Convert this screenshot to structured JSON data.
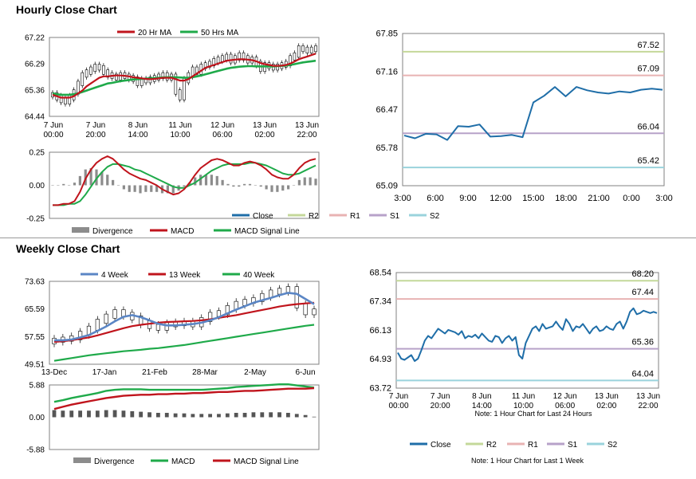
{
  "sections": {
    "hourly_title": "Hourly Close Chart",
    "weekly_title": "Weekly Close Chart"
  },
  "colors": {
    "red": "#c0141c",
    "green": "#1faa4a",
    "blue_ma": "#5b86c5",
    "close": "#1f6ea8",
    "r2": "#c4d89a",
    "r1": "#e8b3b3",
    "s1": "#b7a2c9",
    "s2": "#9ad3dc",
    "divergence": "#8c8c8c"
  },
  "chart_data": [
    {
      "id": "hourly_price",
      "type": "line",
      "legend": [
        "20 Hr MA",
        "50 Hrs MA"
      ],
      "ylim": [
        64.44,
        67.22
      ],
      "yticks": [
        "67.22",
        "66.29",
        "65.36",
        "64.44"
      ],
      "xticks": [
        {
          "line1": "7 Jun",
          "line2": "00:00"
        },
        {
          "line1": "7 Jun",
          "line2": "20:00"
        },
        {
          "line1": "8 Jun",
          "line2": "14:00"
        },
        {
          "line1": "11 Jun",
          "line2": "10:00"
        },
        {
          "line1": "12 Jun",
          "line2": "06:00"
        },
        {
          "line1": "13 Jun",
          "line2": "02:00"
        },
        {
          "line1": "13 Jun",
          "line2": "22:00"
        }
      ],
      "close": [
        65.2,
        65.1,
        65.0,
        64.95,
        65.1,
        65.3,
        65.6,
        65.9,
        66.0,
        66.1,
        66.2,
        66.15,
        66.0,
        65.9,
        65.85,
        65.8,
        65.9,
        65.85,
        65.8,
        65.75,
        65.6,
        65.7,
        65.7,
        65.75,
        65.8,
        65.85,
        65.9,
        65.8,
        65.85,
        65.3,
        65.1,
        65.7,
        65.9,
        66.1,
        66.0,
        66.2,
        66.25,
        66.3,
        66.4,
        66.45,
        66.5,
        66.55,
        66.4,
        66.5,
        66.6,
        66.5,
        66.4,
        66.45,
        66.3,
        66.1,
        66.25,
        66.2,
        66.15,
        66.2,
        66.25,
        66.3,
        66.5,
        66.6,
        66.85,
        66.8,
        66.75,
        66.8,
        66.85
      ],
      "ma20": [
        65.2,
        65.15,
        65.1,
        65.1,
        65.1,
        65.15,
        65.25,
        65.35,
        65.5,
        65.6,
        65.7,
        65.8,
        65.85,
        65.85,
        65.87,
        65.88,
        65.88,
        65.87,
        65.85,
        65.82,
        65.8,
        65.78,
        65.76,
        65.75,
        65.76,
        65.78,
        65.8,
        65.8,
        65.8,
        65.75,
        65.7,
        65.7,
        65.75,
        65.85,
        65.95,
        66.05,
        66.15,
        66.2,
        66.25,
        66.3,
        66.35,
        66.4,
        66.42,
        66.44,
        66.45,
        66.45,
        66.44,
        66.42,
        66.38,
        66.32,
        66.28,
        66.25,
        66.22,
        66.22,
        66.23,
        66.25,
        66.3,
        66.37,
        66.45,
        66.5,
        66.55,
        66.6,
        66.65
      ],
      "ma50": [
        65.25,
        65.22,
        65.2,
        65.2,
        65.2,
        65.22,
        65.25,
        65.3,
        65.35,
        65.4,
        65.45,
        65.5,
        65.55,
        65.6,
        65.62,
        65.65,
        65.68,
        65.7,
        65.72,
        65.74,
        65.75,
        65.76,
        65.77,
        65.78,
        65.79,
        65.8,
        65.81,
        65.82,
        65.82,
        65.82,
        65.81,
        65.8,
        65.8,
        65.82,
        65.85,
        65.88,
        65.92,
        65.96,
        66.0,
        66.04,
        66.08,
        66.12,
        66.15,
        66.17,
        66.19,
        66.2,
        66.21,
        66.21,
        66.2,
        66.2,
        66.2,
        66.2,
        66.2,
        66.21,
        66.22,
        66.23,
        66.25,
        66.28,
        66.31,
        66.34,
        66.36,
        66.38,
        66.4
      ]
    },
    {
      "id": "hourly_macd",
      "type": "line",
      "legend": [
        "Divergence",
        "MACD",
        "MACD Signal Line"
      ],
      "ylim": [
        -0.25,
        0.25
      ],
      "yticks": [
        "0.25",
        "0.00",
        "-0.25"
      ],
      "macd": [
        -0.15,
        -0.15,
        -0.14,
        -0.14,
        -0.12,
        -0.05,
        0.05,
        0.12,
        0.17,
        0.2,
        0.22,
        0.2,
        0.16,
        0.12,
        0.09,
        0.07,
        0.05,
        0.04,
        0.02,
        0.0,
        -0.03,
        -0.05,
        -0.07,
        -0.06,
        -0.03,
        0.02,
        0.08,
        0.13,
        0.16,
        0.19,
        0.2,
        0.19,
        0.17,
        0.15,
        0.15,
        0.17,
        0.18,
        0.17,
        0.15,
        0.12,
        0.08,
        0.06,
        0.05,
        0.05,
        0.08,
        0.13,
        0.17,
        0.19,
        0.2
      ],
      "signal": [
        -0.15,
        -0.15,
        -0.15,
        -0.14,
        -0.14,
        -0.12,
        -0.07,
        -0.01,
        0.05,
        0.1,
        0.14,
        0.16,
        0.16,
        0.15,
        0.14,
        0.12,
        0.11,
        0.09,
        0.07,
        0.05,
        0.03,
        0.01,
        -0.01,
        -0.02,
        -0.02,
        0.0,
        0.02,
        0.05,
        0.08,
        0.11,
        0.13,
        0.15,
        0.16,
        0.16,
        0.16,
        0.16,
        0.17,
        0.17,
        0.16,
        0.15,
        0.13,
        0.11,
        0.09,
        0.08,
        0.08,
        0.09,
        0.11,
        0.13,
        0.15
      ],
      "divergence": [
        0.0,
        0.0,
        0.01,
        0.0,
        0.02,
        0.07,
        0.12,
        0.13,
        0.12,
        0.1,
        0.08,
        0.04,
        0.0,
        -0.03,
        -0.05,
        -0.05,
        -0.06,
        -0.05,
        -0.05,
        -0.05,
        -0.06,
        -0.06,
        -0.06,
        -0.04,
        -0.01,
        0.02,
        0.06,
        0.08,
        0.08,
        0.08,
        0.07,
        0.04,
        0.01,
        -0.01,
        -0.01,
        0.01,
        0.01,
        0.0,
        -0.01,
        -0.03,
        -0.05,
        -0.05,
        -0.04,
        -0.03,
        0.0,
        0.04,
        0.06,
        0.06,
        0.05
      ]
    },
    {
      "id": "hourly_24h",
      "type": "line",
      "legend": [
        "Close",
        "R2",
        "R1",
        "S1",
        "S2"
      ],
      "note": "Note: 1 Hour Chart for Last 24 Hours",
      "ylim": [
        65.09,
        67.85
      ],
      "yticks": [
        "67.85",
        "67.16",
        "66.47",
        "65.78",
        "65.09"
      ],
      "xticks": [
        "3:00",
        "6:00",
        "9:00",
        "12:00",
        "15:00",
        "18:00",
        "21:00",
        "0:00",
        "3:00"
      ],
      "levels": {
        "R2": 67.52,
        "R1": 67.09,
        "S1": 66.04,
        "S2": 65.42
      },
      "level_labels": {
        "R2": "67.52",
        "R1": "67.09",
        "S1": "66.04",
        "S2": "65.42"
      },
      "close": [
        66.0,
        65.95,
        66.03,
        66.02,
        65.92,
        66.17,
        66.16,
        66.2,
        65.98,
        65.99,
        66.01,
        65.97,
        66.6,
        66.72,
        66.88,
        66.71,
        66.88,
        66.82,
        66.78,
        66.76,
        66.8,
        66.78,
        66.83,
        66.85,
        66.83
      ]
    },
    {
      "id": "weekly_price",
      "type": "line",
      "legend": [
        "4 Week",
        "13 Week",
        "40 Week"
      ],
      "ylim": [
        49.51,
        73.63
      ],
      "yticks": [
        "73.63",
        "65.59",
        "57.55",
        "49.51"
      ],
      "xticks": [
        "13-Dec",
        "17-Jan",
        "21-Feb",
        "28-Mar",
        "2-May",
        "6-Jun"
      ],
      "close": [
        56.5,
        56.8,
        57.2,
        58.5,
        60.0,
        62.0,
        63.5,
        64.8,
        64.0,
        63.0,
        61.5,
        60.5,
        60.0,
        61.0,
        61.3,
        61.5,
        61.0,
        62.5,
        64.0,
        64.5,
        66.0,
        67.2,
        67.8,
        68.3,
        69.5,
        70.5,
        71.0,
        71.5,
        66.5,
        64.5,
        65.0
      ],
      "ma4": [
        56.5,
        56.5,
        56.7,
        57.3,
        58.0,
        59.2,
        60.5,
        62.0,
        63.3,
        63.8,
        63.2,
        62.3,
        61.3,
        60.8,
        60.8,
        61.0,
        61.2,
        61.6,
        62.3,
        63.2,
        64.3,
        65.4,
        66.4,
        67.4,
        68.1,
        68.8,
        69.6,
        70.3,
        70.0,
        68.5,
        67.0
      ],
      "ma13": [
        56.0,
        56.2,
        56.5,
        56.9,
        57.3,
        57.9,
        58.6,
        59.3,
        60.0,
        60.6,
        61.0,
        61.3,
        61.6,
        61.8,
        61.9,
        62.0,
        62.1,
        62.3,
        62.6,
        63.0,
        63.4,
        63.8,
        64.3,
        64.8,
        65.3,
        65.8,
        66.3,
        66.7,
        67.0,
        67.2,
        67.4
      ],
      "ma40": [
        50.5,
        50.9,
        51.3,
        51.7,
        52.1,
        52.4,
        52.7,
        53.0,
        53.3,
        53.5,
        53.7,
        54.0,
        54.2,
        54.5,
        54.8,
        55.1,
        55.5,
        55.9,
        56.3,
        56.7,
        57.1,
        57.5,
        57.9,
        58.3,
        58.7,
        59.1,
        59.5,
        59.9,
        60.3,
        60.7,
        61.0
      ]
    },
    {
      "id": "weekly_macd",
      "type": "line",
      "legend": [
        "Divergence",
        "MACD",
        "MACD Signal Line"
      ],
      "ylim": [
        -5.88,
        5.88
      ],
      "yticks": [
        "5.88",
        "0.00",
        "-5.88"
      ],
      "macd": [
        2.8,
        3.1,
        3.5,
        3.8,
        4.1,
        4.4,
        4.8,
        5.0,
        5.1,
        5.1,
        5.1,
        5.0,
        5.0,
        5.0,
        5.0,
        5.0,
        5.0,
        5.0,
        5.1,
        5.2,
        5.3,
        5.5,
        5.6,
        5.7,
        5.8,
        5.9,
        6.0,
        6.0,
        5.8,
        5.6,
        5.4
      ],
      "signal": [
        1.5,
        1.9,
        2.3,
        2.6,
        2.9,
        3.2,
        3.5,
        3.7,
        3.9,
        4.0,
        4.1,
        4.1,
        4.2,
        4.2,
        4.3,
        4.3,
        4.4,
        4.4,
        4.5,
        4.6,
        4.6,
        4.7,
        4.8,
        4.8,
        4.9,
        5.0,
        5.1,
        5.2,
        5.2,
        5.2,
        5.3
      ],
      "divergence": [
        1.3,
        1.2,
        1.2,
        1.2,
        1.2,
        1.2,
        1.3,
        1.3,
        1.2,
        1.1,
        1.0,
        0.9,
        0.8,
        0.8,
        0.7,
        0.7,
        0.6,
        0.6,
        0.6,
        0.6,
        0.7,
        0.8,
        0.8,
        0.9,
        0.9,
        0.9,
        0.9,
        0.8,
        0.6,
        0.4,
        0.1
      ]
    },
    {
      "id": "weekly_1w",
      "type": "line",
      "legend": [
        "Close",
        "R2",
        "R1",
        "S1",
        "S2"
      ],
      "note": "Note: 1 Hour Chart for Last 1 Week",
      "ylim": [
        63.72,
        68.54
      ],
      "yticks": [
        "68.54",
        "67.34",
        "66.13",
        "64.93",
        "63.72"
      ],
      "xticks": [
        {
          "line1": "7 Jun",
          "line2": "00:00"
        },
        {
          "line1": "7 Jun",
          "line2": "20:00"
        },
        {
          "line1": "8 Jun",
          "line2": "14:00"
        },
        {
          "line1": "11 Jun",
          "line2": "10:00"
        },
        {
          "line1": "12 Jun",
          "line2": "06:00"
        },
        {
          "line1": "13 Jun",
          "line2": "02:00"
        },
        {
          "line1": "13 Jun",
          "line2": "22:00"
        }
      ],
      "levels": {
        "R2": 68.2,
        "R1": 67.44,
        "S1": 65.36,
        "S2": 64.04
      },
      "level_labels": {
        "R2": "68.20",
        "R1": "67.44",
        "S1": "65.36",
        "S2": "64.04"
      },
      "close": [
        65.2,
        64.95,
        64.9,
        65.0,
        65.1,
        64.85,
        64.95,
        65.3,
        65.7,
        65.9,
        65.8,
        66.0,
        66.2,
        66.1,
        66.0,
        66.15,
        66.1,
        66.05,
        65.95,
        66.1,
        65.8,
        65.9,
        65.85,
        65.95,
        65.8,
        66.0,
        65.85,
        65.7,
        65.65,
        65.9,
        65.85,
        65.6,
        65.8,
        65.9,
        65.7,
        65.85,
        65.1,
        64.95,
        65.6,
        65.9,
        66.2,
        66.3,
        66.1,
        66.4,
        66.2,
        66.25,
        66.3,
        66.5,
        66.3,
        66.15,
        66.6,
        66.4,
        66.1,
        66.3,
        66.25,
        66.4,
        66.2,
        66.0,
        66.2,
        66.3,
        66.1,
        66.15,
        66.3,
        66.2,
        66.15,
        66.4,
        66.5,
        66.2,
        66.5,
        66.9,
        67.05,
        66.8,
        66.85,
        66.95,
        66.9,
        66.85,
        66.9,
        66.85
      ]
    }
  ]
}
